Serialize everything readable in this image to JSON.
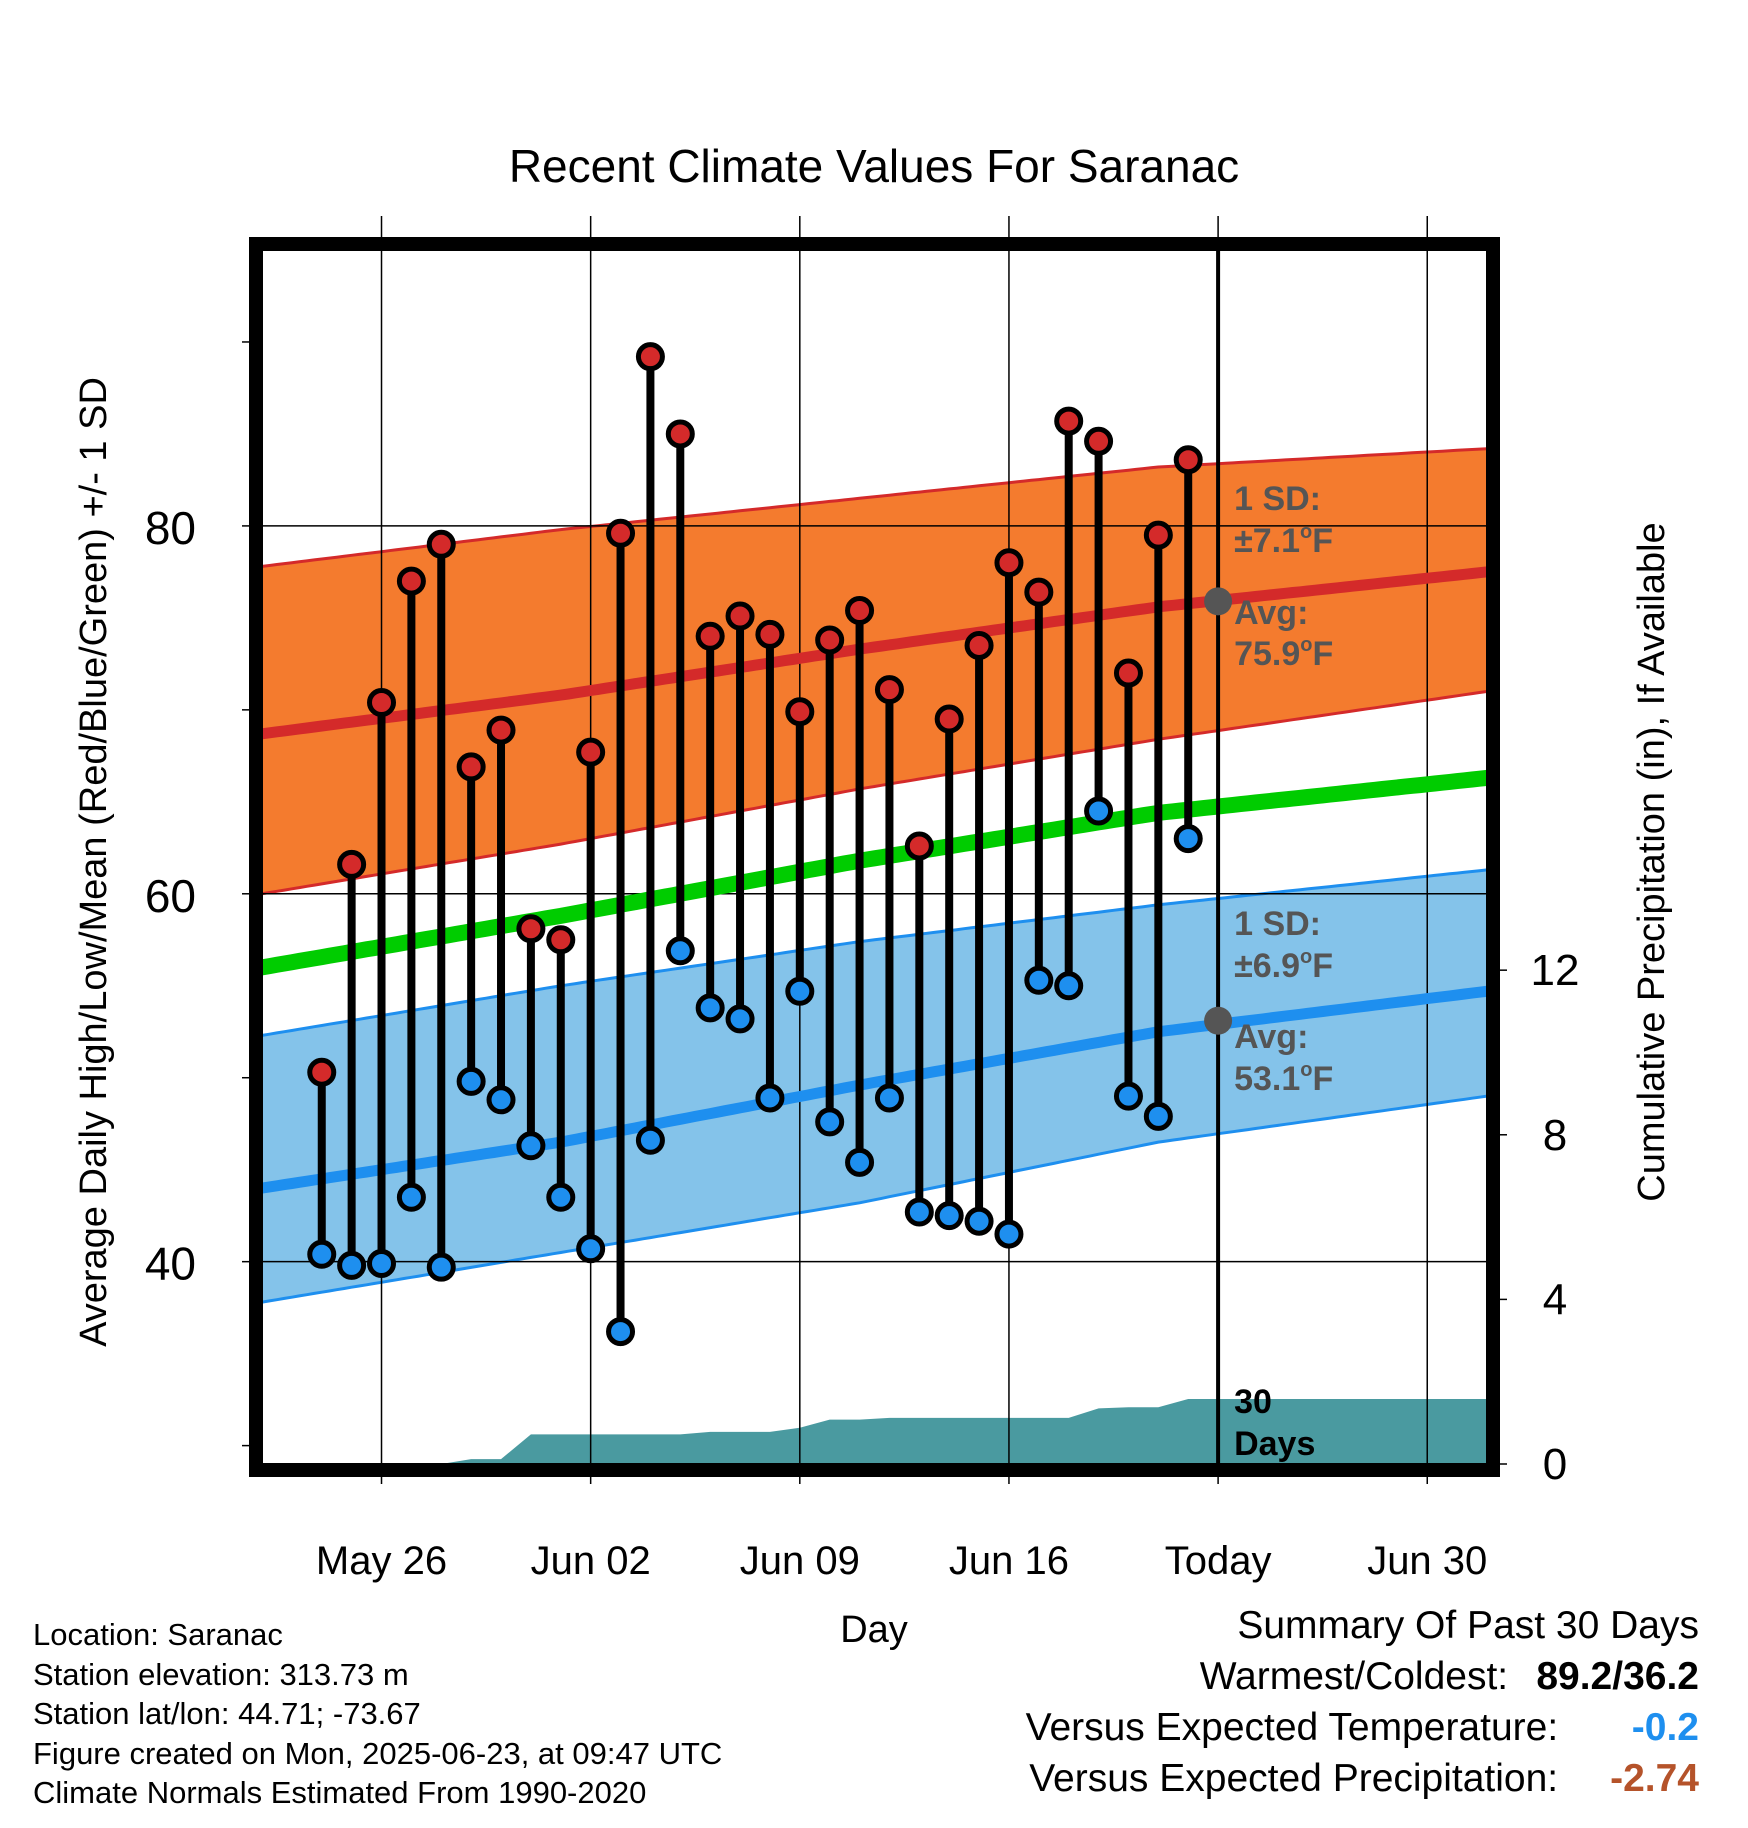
{
  "colors": {
    "high_band": "#f47b2e",
    "high_line": "#d42a2a",
    "low_band": "#84c3ea",
    "low_line": "#1e8fef",
    "mean_line": "#00cc00",
    "precip_fill": "#4a9aa0",
    "high_dot": "#d42a2a",
    "low_dot": "#1e8fef",
    "avg_dot": "#555555",
    "annot_text": "#555555",
    "temp_diff": "#1e8fef",
    "precip_diff": "#b5532a"
  },
  "chart_data": {
    "type": "line",
    "title": "Recent Climate Values For Saranac",
    "xlabel": "Day",
    "ylabel": "Average Daily High/Low/Mean (Red/Blue/Green) +/- 1 SD",
    "y2label": "Cumulative Precipitation (in), If Available",
    "ylim": [
      29,
      95
    ],
    "y_ticks": [
      40,
      60,
      80
    ],
    "y_minor_ticks": [
      30,
      50,
      70,
      90
    ],
    "y2lim": [
      0,
      29.5
    ],
    "y2_ticks": [
      0,
      4,
      8,
      12
    ],
    "x_range": [
      "2025-05-22",
      "2025-07-02"
    ],
    "x_ticks": [
      {
        "date": "2025-05-26",
        "label": "May 26"
      },
      {
        "date": "2025-06-02",
        "label": "Jun 02"
      },
      {
        "date": "2025-06-09",
        "label": "Jun 09"
      },
      {
        "date": "2025-06-16",
        "label": "Jun 16"
      },
      {
        "date": "2025-06-23",
        "label": "Today"
      },
      {
        "date": "2025-06-30",
        "label": "Jun 30"
      }
    ],
    "today": "2025-06-23",
    "grid": true,
    "normals": {
      "dates": [
        "2025-05-22",
        "2025-06-01",
        "2025-06-11",
        "2025-06-21",
        "2025-07-02"
      ],
      "avg_high": [
        68.7,
        70.8,
        73.3,
        75.6,
        77.5
      ],
      "avg_high_upper": [
        77.8,
        79.8,
        81.5,
        83.2,
        84.2
      ],
      "avg_high_lower": [
        60.0,
        62.7,
        65.7,
        68.4,
        71.0
      ],
      "avg_mean": [
        56.0,
        58.8,
        61.8,
        64.4,
        66.3
      ],
      "avg_low": [
        44.0,
        46.5,
        49.6,
        52.5,
        54.7
      ],
      "avg_low_upper": [
        52.3,
        55.0,
        57.4,
        59.4,
        61.3
      ],
      "avg_low_lower": [
        37.8,
        40.5,
        43.2,
        46.5,
        49.0
      ]
    },
    "daily": {
      "dates": [
        "2025-05-24",
        "2025-05-25",
        "2025-05-26",
        "2025-05-27",
        "2025-05-28",
        "2025-05-29",
        "2025-05-30",
        "2025-05-31",
        "2025-06-01",
        "2025-06-02",
        "2025-06-03",
        "2025-06-04",
        "2025-06-05",
        "2025-06-06",
        "2025-06-07",
        "2025-06-08",
        "2025-06-09",
        "2025-06-10",
        "2025-06-11",
        "2025-06-12",
        "2025-06-13",
        "2025-06-14",
        "2025-06-15",
        "2025-06-16",
        "2025-06-17",
        "2025-06-18",
        "2025-06-19",
        "2025-06-20",
        "2025-06-21",
        "2025-06-22"
      ],
      "high": [
        50.3,
        61.6,
        70.4,
        77.0,
        79.0,
        66.9,
        68.9,
        58.1,
        57.5,
        67.7,
        79.6,
        89.2,
        85.0,
        74.0,
        75.1,
        74.1,
        69.9,
        73.8,
        75.4,
        71.1,
        62.6,
        69.5,
        73.5,
        78.0,
        76.4,
        85.7,
        84.6,
        72.0,
        79.5,
        83.6
      ],
      "low": [
        40.4,
        39.8,
        39.9,
        43.5,
        39.7,
        49.8,
        48.8,
        46.3,
        43.5,
        40.7,
        36.2,
        46.6,
        56.9,
        53.8,
        53.2,
        48.9,
        54.7,
        47.6,
        45.4,
        48.9,
        42.7,
        42.5,
        42.2,
        41.5,
        55.3,
        55.0,
        64.5,
        49.0,
        47.9,
        63.0
      ]
    },
    "precip": {
      "dates": [
        "2025-05-22",
        "2025-05-23",
        "2025-05-24",
        "2025-05-25",
        "2025-05-26",
        "2025-05-27",
        "2025-05-28",
        "2025-05-29",
        "2025-05-30",
        "2025-05-31",
        "2025-06-01",
        "2025-06-02",
        "2025-06-03",
        "2025-06-04",
        "2025-06-05",
        "2025-06-06",
        "2025-06-07",
        "2025-06-08",
        "2025-06-09",
        "2025-06-10",
        "2025-06-11",
        "2025-06-12",
        "2025-06-13",
        "2025-06-14",
        "2025-06-15",
        "2025-06-16",
        "2025-06-17",
        "2025-06-18",
        "2025-06-19",
        "2025-06-20",
        "2025-06-21",
        "2025-06-22",
        "2025-06-23",
        "2025-07-02"
      ],
      "cumulative": [
        0,
        0,
        0,
        0,
        0,
        0,
        0,
        0.12,
        0.12,
        0.72,
        0.72,
        0.72,
        0.72,
        0.72,
        0.72,
        0.78,
        0.78,
        0.78,
        0.88,
        1.08,
        1.08,
        1.12,
        1.12,
        1.12,
        1.12,
        1.12,
        1.12,
        1.12,
        1.35,
        1.38,
        1.38,
        1.58,
        1.58,
        1.58
      ]
    },
    "annotations": {
      "high_sd": "1 SD:",
      "high_sd_value": "±7.1",
      "high_avg": "Avg:",
      "high_avg_value": "75.9",
      "high_avg_point": 75.9,
      "low_sd": "1 SD:",
      "low_sd_value": "±6.9",
      "low_avg": "Avg:",
      "low_avg_value": "53.1",
      "low_avg_point": 53.1,
      "degree_unit": "o",
      "unit": "F",
      "precip_label_line1": "30",
      "precip_label_line2": "Days"
    }
  },
  "footer": {
    "location": "Location: Saranac",
    "elevation": "Station elevation: 313.73 m",
    "latlon": "Station lat/lon: 44.71; -73.67",
    "created": "Figure created on Mon, 2025-06-23, at 09:47 UTC",
    "normals": "Climate Normals Estimated From 1990-2020"
  },
  "summary": {
    "title": "Summary Of Past 30 Days",
    "warm_cold_label": "Warmest/Coldest:",
    "warm_cold_value": "89.2/36.2",
    "temp_label": "Versus Expected Temperature:",
    "temp_value": "-0.2",
    "precip_label": "Versus Expected Precipitation:",
    "precip_value": "-2.74"
  }
}
